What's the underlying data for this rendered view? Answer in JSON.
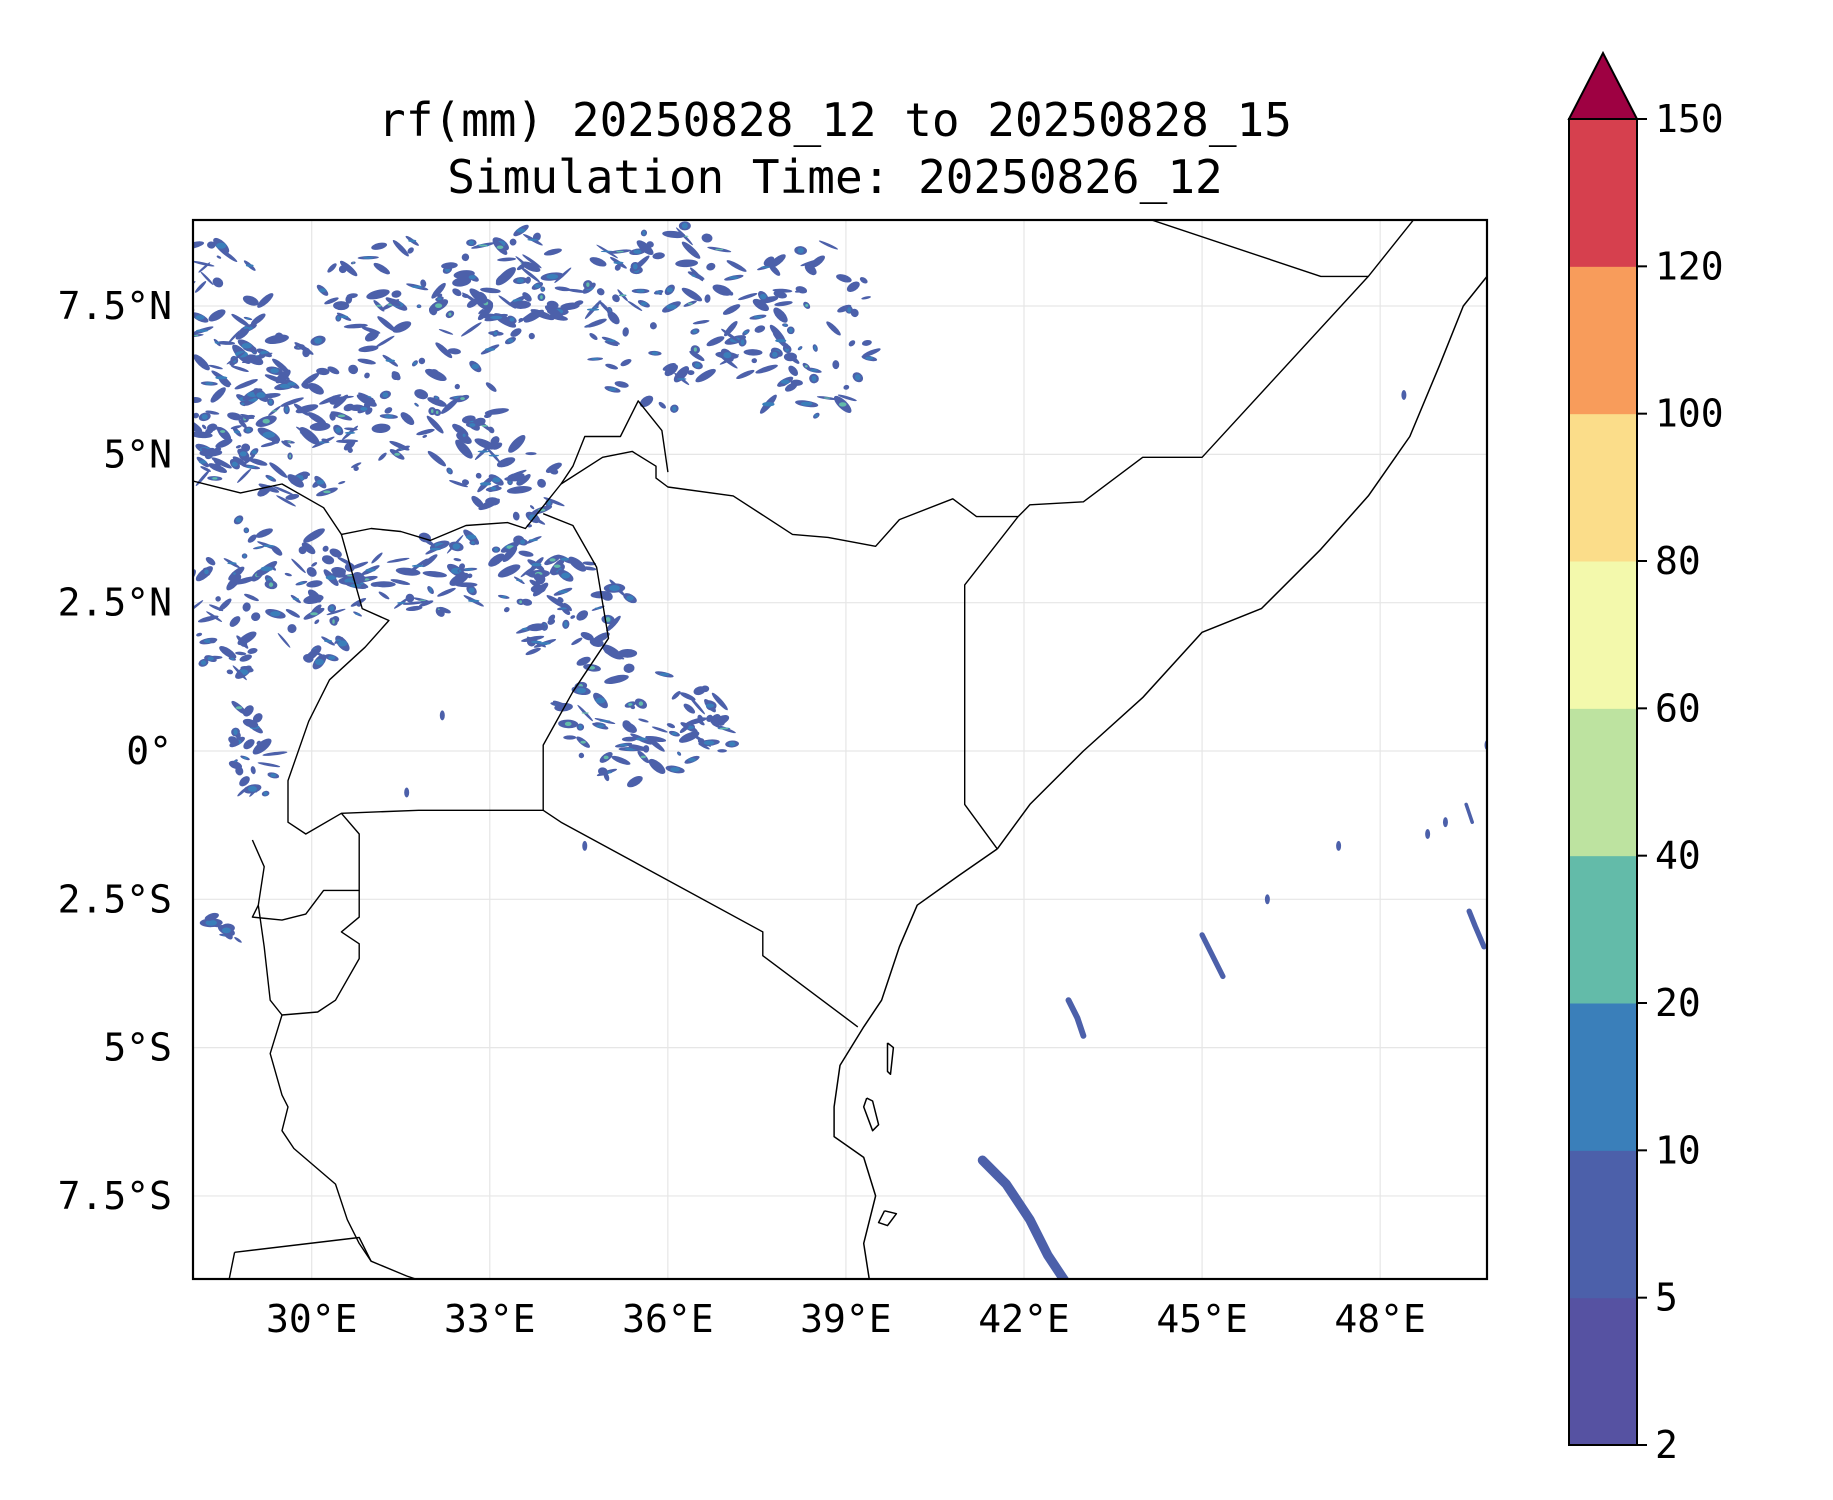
{
  "title": {
    "line1": "rf(mm) 20250828_12 to 20250828_15",
    "line2": "Simulation Time: 20250826_12"
  },
  "map_extent": {
    "lon_min": 28.0,
    "lon_max": 49.8,
    "lat_min": -8.9,
    "lat_max": 8.95
  },
  "x_ticks": [
    {
      "value": 30,
      "label": "30°E"
    },
    {
      "value": 33,
      "label": "33°E"
    },
    {
      "value": 36,
      "label": "36°E"
    },
    {
      "value": 39,
      "label": "39°E"
    },
    {
      "value": 42,
      "label": "42°E"
    },
    {
      "value": 45,
      "label": "45°E"
    },
    {
      "value": 48,
      "label": "48°E"
    }
  ],
  "y_ticks": [
    {
      "value": 7.5,
      "label": "7.5°N"
    },
    {
      "value": 5,
      "label": "5°N"
    },
    {
      "value": 2.5,
      "label": "2.5°N"
    },
    {
      "value": 0,
      "label": "0°"
    },
    {
      "value": -2.5,
      "label": "2.5°S"
    },
    {
      "value": -5,
      "label": "5°S"
    },
    {
      "value": -7.5,
      "label": "7.5°S"
    }
  ],
  "colorbar": {
    "levels": [
      2,
      5,
      10,
      20,
      40,
      60,
      80,
      100,
      120,
      150
    ],
    "labels": [
      "2",
      "5",
      "10",
      "20",
      "40",
      "60",
      "80",
      "100",
      "120",
      "150"
    ],
    "colors": [
      "#5652a2",
      "#4c60aa",
      "#3a7fba",
      "#63bba9",
      "#bde3a0",
      "#f3f9ac",
      "#fbdd8a",
      "#f89c5b",
      "#d6404e"
    ],
    "extend_color": "#9e0142"
  },
  "borders": [
    [
      [
        28.0,
        4.55
      ],
      [
        28.8,
        4.35
      ],
      [
        29.5,
        4.5
      ],
      [
        30.2,
        4.1
      ],
      [
        30.5,
        3.65
      ],
      [
        31.0,
        3.75
      ],
      [
        31.5,
        3.7
      ],
      [
        32.0,
        3.55
      ],
      [
        32.6,
        3.8
      ],
      [
        33.3,
        3.85
      ],
      [
        33.6,
        3.75
      ],
      [
        34.2,
        4.5
      ],
      [
        34.9,
        4.95
      ],
      [
        35.4,
        5.05
      ],
      [
        35.8,
        4.8
      ],
      [
        35.8,
        4.6
      ],
      [
        36.0,
        4.45
      ],
      [
        37.1,
        4.3
      ],
      [
        38.1,
        3.65
      ],
      [
        38.7,
        3.6
      ],
      [
        39.5,
        3.45
      ],
      [
        39.9,
        3.9
      ],
      [
        40.8,
        4.25
      ],
      [
        41.2,
        3.95
      ],
      [
        41.9,
        3.95
      ]
    ],
    [
      [
        30.5,
        3.65
      ],
      [
        30.85,
        2.4
      ],
      [
        31.3,
        2.2
      ],
      [
        30.9,
        1.75
      ],
      [
        30.3,
        1.2
      ],
      [
        29.95,
        0.5
      ],
      [
        29.6,
        -0.5
      ],
      [
        29.6,
        -1.2
      ],
      [
        29.9,
        -1.4
      ],
      [
        30.5,
        -1.05
      ],
      [
        31.8,
        -1.0
      ],
      [
        33.9,
        -1.0
      ],
      [
        34.2,
        -1.2
      ],
      [
        37.6,
        -3.05
      ],
      [
        37.6,
        -3.45
      ],
      [
        39.2,
        -4.65
      ]
    ],
    [
      [
        33.9,
        -1.0
      ],
      [
        33.9,
        0.1
      ],
      [
        34.4,
        1.0
      ],
      [
        35.0,
        1.9
      ],
      [
        34.8,
        3.1
      ],
      [
        34.4,
        3.8
      ],
      [
        33.9,
        4.0
      ]
    ],
    [
      [
        34.2,
        4.5
      ],
      [
        34.4,
        4.8
      ],
      [
        34.6,
        5.3
      ],
      [
        35.2,
        5.3
      ],
      [
        35.5,
        5.9
      ],
      [
        35.9,
        5.4
      ],
      [
        36.0,
        4.7
      ]
    ],
    [
      [
        41.9,
        3.95
      ],
      [
        41.0,
        2.8
      ],
      [
        41.0,
        -0.9
      ],
      [
        41.55,
        -1.65
      ]
    ],
    [
      [
        41.9,
        3.95
      ],
      [
        42.1,
        4.15
      ],
      [
        43.0,
        4.2
      ],
      [
        44.0,
        4.95
      ],
      [
        45.0,
        4.95
      ],
      [
        47.8,
        8.0
      ],
      [
        48.6,
        9.0
      ]
    ],
    [
      [
        47.8,
        8.0
      ],
      [
        47.0,
        8.0
      ],
      [
        44.0,
        9.0
      ]
    ],
    [
      [
        29.0,
        -1.5
      ],
      [
        29.2,
        -1.95
      ],
      [
        29.1,
        -2.6
      ],
      [
        29.0,
        -2.8
      ],
      [
        29.5,
        -2.85
      ],
      [
        29.9,
        -2.75
      ],
      [
        30.2,
        -2.35
      ],
      [
        30.8,
        -2.35
      ],
      [
        30.8,
        -1.4
      ],
      [
        30.5,
        -1.05
      ]
    ],
    [
      [
        29.1,
        -2.6
      ],
      [
        29.2,
        -3.3
      ],
      [
        29.3,
        -4.2
      ],
      [
        29.5,
        -4.45
      ],
      [
        30.1,
        -4.4
      ],
      [
        30.4,
        -4.2
      ],
      [
        30.8,
        -3.5
      ],
      [
        30.8,
        -3.25
      ],
      [
        30.5,
        -3.05
      ],
      [
        30.8,
        -2.8
      ],
      [
        30.8,
        -2.35
      ]
    ],
    [
      [
        29.5,
        -4.45
      ],
      [
        29.3,
        -5.1
      ],
      [
        29.5,
        -5.8
      ],
      [
        29.6,
        -6.0
      ],
      [
        29.5,
        -6.4
      ],
      [
        29.7,
        -6.7
      ],
      [
        30.4,
        -7.3
      ],
      [
        30.6,
        -7.9
      ],
      [
        30.8,
        -8.3
      ],
      [
        31.0,
        -8.6
      ],
      [
        31.6,
        -8.85
      ],
      [
        31.9,
        -8.95
      ]
    ],
    [
      [
        28.7,
        -8.45
      ],
      [
        30.8,
        -8.2
      ],
      [
        31.0,
        -8.6
      ]
    ],
    [
      [
        28.7,
        -8.45
      ],
      [
        28.6,
        -8.95
      ]
    ]
  ],
  "coastlines": [
    [
      [
        41.55,
        -1.65
      ],
      [
        40.9,
        -2.1
      ],
      [
        40.2,
        -2.6
      ],
      [
        39.9,
        -3.3
      ],
      [
        39.6,
        -4.2
      ],
      [
        39.3,
        -4.65
      ],
      [
        38.9,
        -5.3
      ],
      [
        38.8,
        -6.0
      ],
      [
        38.8,
        -6.5
      ],
      [
        39.3,
        -6.85
      ],
      [
        39.5,
        -7.5
      ],
      [
        39.3,
        -8.3
      ],
      [
        39.4,
        -8.95
      ]
    ],
    [
      [
        41.55,
        -1.65
      ],
      [
        42.1,
        -0.9
      ],
      [
        43.0,
        0.0
      ],
      [
        44.0,
        0.9
      ],
      [
        45.0,
        2.0
      ],
      [
        46.0,
        2.4
      ],
      [
        47.0,
        3.4
      ],
      [
        47.8,
        4.3
      ],
      [
        48.5,
        5.3
      ],
      [
        49.0,
        6.5
      ],
      [
        49.4,
        7.5
      ],
      [
        49.8,
        8.0
      ]
    ],
    [
      [
        39.7,
        -4.92
      ],
      [
        39.8,
        -5.0
      ],
      [
        39.75,
        -5.45
      ],
      [
        39.7,
        -5.4
      ],
      [
        39.7,
        -4.92
      ]
    ],
    [
      [
        39.35,
        -5.85
      ],
      [
        39.45,
        -5.9
      ],
      [
        39.55,
        -6.3
      ],
      [
        39.45,
        -6.4
      ],
      [
        39.3,
        -6.0
      ],
      [
        39.35,
        -5.85
      ]
    ],
    [
      [
        39.65,
        -7.75
      ],
      [
        39.85,
        -7.8
      ],
      [
        39.7,
        -8.0
      ],
      [
        39.55,
        -7.95
      ],
      [
        39.65,
        -7.75
      ]
    ]
  ],
  "rain_regions": [
    {
      "lon": 28.3,
      "lat": 6.5,
      "rlon": 1.2,
      "rlat": 2.1,
      "n": 110,
      "seed": 11
    },
    {
      "lon": 29.6,
      "lat": 5.6,
      "rlon": 1.6,
      "rlat": 1.4,
      "n": 90,
      "seed": 12
    },
    {
      "lon": 28.7,
      "lat": 2.6,
      "rlon": 1.1,
      "rlat": 1.3,
      "n": 60,
      "seed": 13
    },
    {
      "lon": 30.2,
      "lat": 2.6,
      "rlon": 0.6,
      "rlat": 1.2,
      "n": 40,
      "seed": 14
    },
    {
      "lon": 32.4,
      "lat": 3.0,
      "rlon": 1.8,
      "rlat": 0.7,
      "n": 65,
      "seed": 15
    },
    {
      "lon": 33.6,
      "lat": 4.3,
      "rlon": 0.6,
      "rlat": 0.8,
      "n": 25,
      "seed": 16
    },
    {
      "lon": 34.3,
      "lat": 2.4,
      "rlon": 1.1,
      "rlat": 0.9,
      "n": 45,
      "seed": 17
    },
    {
      "lon": 35.4,
      "lat": 0.6,
      "rlon": 1.3,
      "rlat": 1.2,
      "n": 60,
      "seed": 18
    },
    {
      "lon": 36.7,
      "lat": 0.5,
      "rlon": 0.5,
      "rlat": 0.6,
      "n": 20,
      "seed": 19
    },
    {
      "lon": 29.0,
      "lat": 0.0,
      "rlon": 0.4,
      "rlat": 0.9,
      "n": 25,
      "seed": 20
    },
    {
      "lon": 31.5,
      "lat": 6.7,
      "rlon": 1.7,
      "rlat": 2.0,
      "n": 100,
      "seed": 21
    },
    {
      "lon": 33.3,
      "lat": 7.8,
      "rlon": 1.2,
      "rlat": 1.0,
      "n": 60,
      "seed": 22
    },
    {
      "lon": 36.0,
      "lat": 7.3,
      "rlon": 1.7,
      "rlat": 1.6,
      "n": 85,
      "seed": 23
    },
    {
      "lon": 38.2,
      "lat": 7.2,
      "rlon": 1.3,
      "rlat": 1.7,
      "n": 70,
      "seed": 24
    },
    {
      "lon": 32.9,
      "lat": 4.9,
      "rlon": 0.6,
      "rlat": 0.9,
      "n": 25,
      "seed": 25
    },
    {
      "lon": 28.5,
      "lat": -3.0,
      "rlon": 0.3,
      "rlat": 0.5,
      "n": 8,
      "seed": 26
    }
  ],
  "rain_streaks": [
    {
      "points": [
        [
          41.3,
          -6.9
        ],
        [
          41.7,
          -7.3
        ],
        [
          42.1,
          -7.9
        ],
        [
          42.4,
          -8.5
        ],
        [
          42.7,
          -8.95
        ]
      ],
      "width": 0.16
    },
    {
      "points": [
        [
          42.75,
          -4.2
        ],
        [
          42.9,
          -4.5
        ],
        [
          43.0,
          -4.8
        ]
      ],
      "width": 0.1
    },
    {
      "points": [
        [
          45.0,
          -3.1
        ],
        [
          45.15,
          -3.4
        ],
        [
          45.35,
          -3.8
        ]
      ],
      "width": 0.09
    },
    {
      "points": [
        [
          49.5,
          -2.7
        ],
        [
          49.6,
          -2.95
        ],
        [
          49.75,
          -3.3
        ]
      ],
      "width": 0.09
    },
    {
      "points": [
        [
          49.45,
          -0.9
        ],
        [
          49.55,
          -1.2
        ]
      ],
      "width": 0.06
    }
  ],
  "rain_specks": [
    [
      47.3,
      -1.6
    ],
    [
      46.1,
      -2.5
    ],
    [
      48.8,
      -1.4
    ],
    [
      49.1,
      -1.2
    ],
    [
      49.8,
      0.1
    ],
    [
      48.4,
      6.0
    ],
    [
      34.6,
      -1.6
    ],
    [
      32.2,
      0.6
    ],
    [
      31.6,
      -0.7
    ]
  ]
}
